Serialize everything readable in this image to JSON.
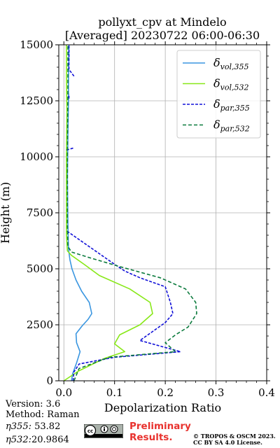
{
  "chart_data": {
    "type": "line",
    "title_line1": "pollyxt_cpv at Mindelo",
    "title_line2": "[Averaged] 20230722 06:00-06:30",
    "xlabel": "Depolarization Ratio",
    "ylabel": "Height (m)",
    "xlim": [
      -0.01,
      0.4
    ],
    "ylim": [
      0,
      15000
    ],
    "x_ticks": [
      "0.0",
      "0.1",
      "0.2",
      "0.3",
      "0.4"
    ],
    "x_tick_values": [
      0,
      0.1,
      0.2,
      0.3,
      0.4
    ],
    "y_ticks": [
      "0",
      "2500",
      "5000",
      "7500",
      "10000",
      "12500",
      "15000"
    ],
    "y_tick_values": [
      0,
      2500,
      5000,
      7500,
      10000,
      12500,
      15000
    ],
    "grid": true,
    "legend_position": "top-right",
    "series": [
      {
        "name": "δvol,355",
        "name_base": "δ",
        "name_sub": "vol,355",
        "color": "#3a96e0",
        "dash": "solid",
        "points": [
          [
            0.015,
            0
          ],
          [
            0.017,
            300
          ],
          [
            0.025,
            800
          ],
          [
            0.032,
            1300
          ],
          [
            0.025,
            1700
          ],
          [
            0.024,
            2100
          ],
          [
            0.036,
            2450
          ],
          [
            0.048,
            2750
          ],
          [
            0.055,
            3000
          ],
          [
            0.05,
            3500
          ],
          [
            0.035,
            4000
          ],
          [
            0.024,
            4500
          ],
          [
            0.016,
            5000
          ],
          [
            0.012,
            5400
          ],
          [
            0.009,
            5900
          ],
          [
            0.008,
            7000
          ],
          [
            0.007,
            9000
          ],
          [
            0.008,
            11000
          ],
          [
            0.009,
            12500
          ],
          [
            0.009,
            13500
          ],
          [
            0.01,
            14500
          ],
          [
            0.01,
            15000
          ]
        ]
      },
      {
        "name": "δvol,532",
        "name_base": "δ",
        "name_sub": "vol,532",
        "color": "#88e818",
        "dash": "solid",
        "points": [
          [
            0,
            0
          ],
          [
            0.03,
            450
          ],
          [
            0.08,
            1000
          ],
          [
            0.12,
            1300
          ],
          [
            0.1,
            1650
          ],
          [
            0.11,
            2050
          ],
          [
            0.15,
            2500
          ],
          [
            0.175,
            3000
          ],
          [
            0.17,
            3500
          ],
          [
            0.13,
            4100
          ],
          [
            0.07,
            4700
          ],
          [
            0.04,
            5200
          ],
          [
            0.015,
            5600
          ],
          [
            0.007,
            5800
          ],
          [
            0.005,
            6500
          ],
          [
            0.005,
            8000
          ],
          [
            0.005,
            10000
          ],
          [
            0.006,
            12000
          ],
          [
            0.005,
            13500
          ],
          [
            0.005,
            14500
          ],
          [
            0.005,
            15000
          ]
        ]
      },
      {
        "name": "δpar,355",
        "name_base": "δ",
        "name_sub": "par,355",
        "color": "#1010d8",
        "dash": "4,2",
        "points": [
          [
            0.018,
            0
          ],
          [
            0.02,
            400
          ],
          [
            0.03,
            750
          ],
          [
            0.1,
            1050
          ],
          [
            0.23,
            1300
          ],
          [
            0.15,
            1800
          ],
          [
            0.175,
            2200
          ],
          [
            0.2,
            2600
          ],
          [
            0.215,
            3000
          ],
          [
            0.21,
            3500
          ],
          [
            0.2,
            4200
          ],
          [
            0.15,
            4600
          ],
          [
            0.12,
            4900
          ],
          [
            0.1,
            5200
          ],
          [
            0.005,
            6700
          ],
          [
            null,
            null
          ],
          [
            0.005,
            10300
          ],
          [
            0.02,
            10400
          ],
          [
            null,
            null
          ],
          [
            0.01,
            12600
          ],
          [
            0.01,
            12800
          ],
          [
            null,
            null
          ],
          [
            0.02,
            13600
          ],
          [
            0.01,
            13900
          ],
          [
            0.01,
            14500
          ],
          [
            0.01,
            15000
          ]
        ]
      },
      {
        "name": "δpar,532",
        "name_base": "δ",
        "name_sub": "par,532",
        "color": "#0a7a3c",
        "dash": "5,3",
        "points": [
          [
            0.02,
            0
          ],
          [
            0.03,
            550
          ],
          [
            0.09,
            1050
          ],
          [
            0.22,
            1300
          ],
          [
            0.2,
            1700
          ],
          [
            0.22,
            2050
          ],
          [
            0.245,
            2400
          ],
          [
            0.262,
            3000
          ],
          [
            0.26,
            3500
          ],
          [
            0.24,
            4100
          ],
          [
            0.19,
            4600
          ],
          [
            0.11,
            5100
          ],
          [
            0.05,
            5500
          ],
          [
            0.015,
            5750
          ],
          [
            0.008,
            6000
          ],
          [
            0.007,
            7000
          ],
          [
            0.007,
            10000
          ],
          [
            0.008,
            13000
          ],
          [
            0.008,
            15000
          ]
        ]
      }
    ]
  },
  "meta": {
    "version": "Version: 3.6",
    "method": "Method: Raman",
    "eta355_label": "η355:",
    "eta355_value": "53.82",
    "eta532_label": "η532:",
    "eta532_value": "20.9864"
  },
  "footer": {
    "preliminary_line1": "Preliminary",
    "preliminary_line2": "Results.",
    "copyright_line1": "© TROPOS & OSCM 2023.",
    "copyright_line2": "CC BY SA 4.0 License."
  }
}
